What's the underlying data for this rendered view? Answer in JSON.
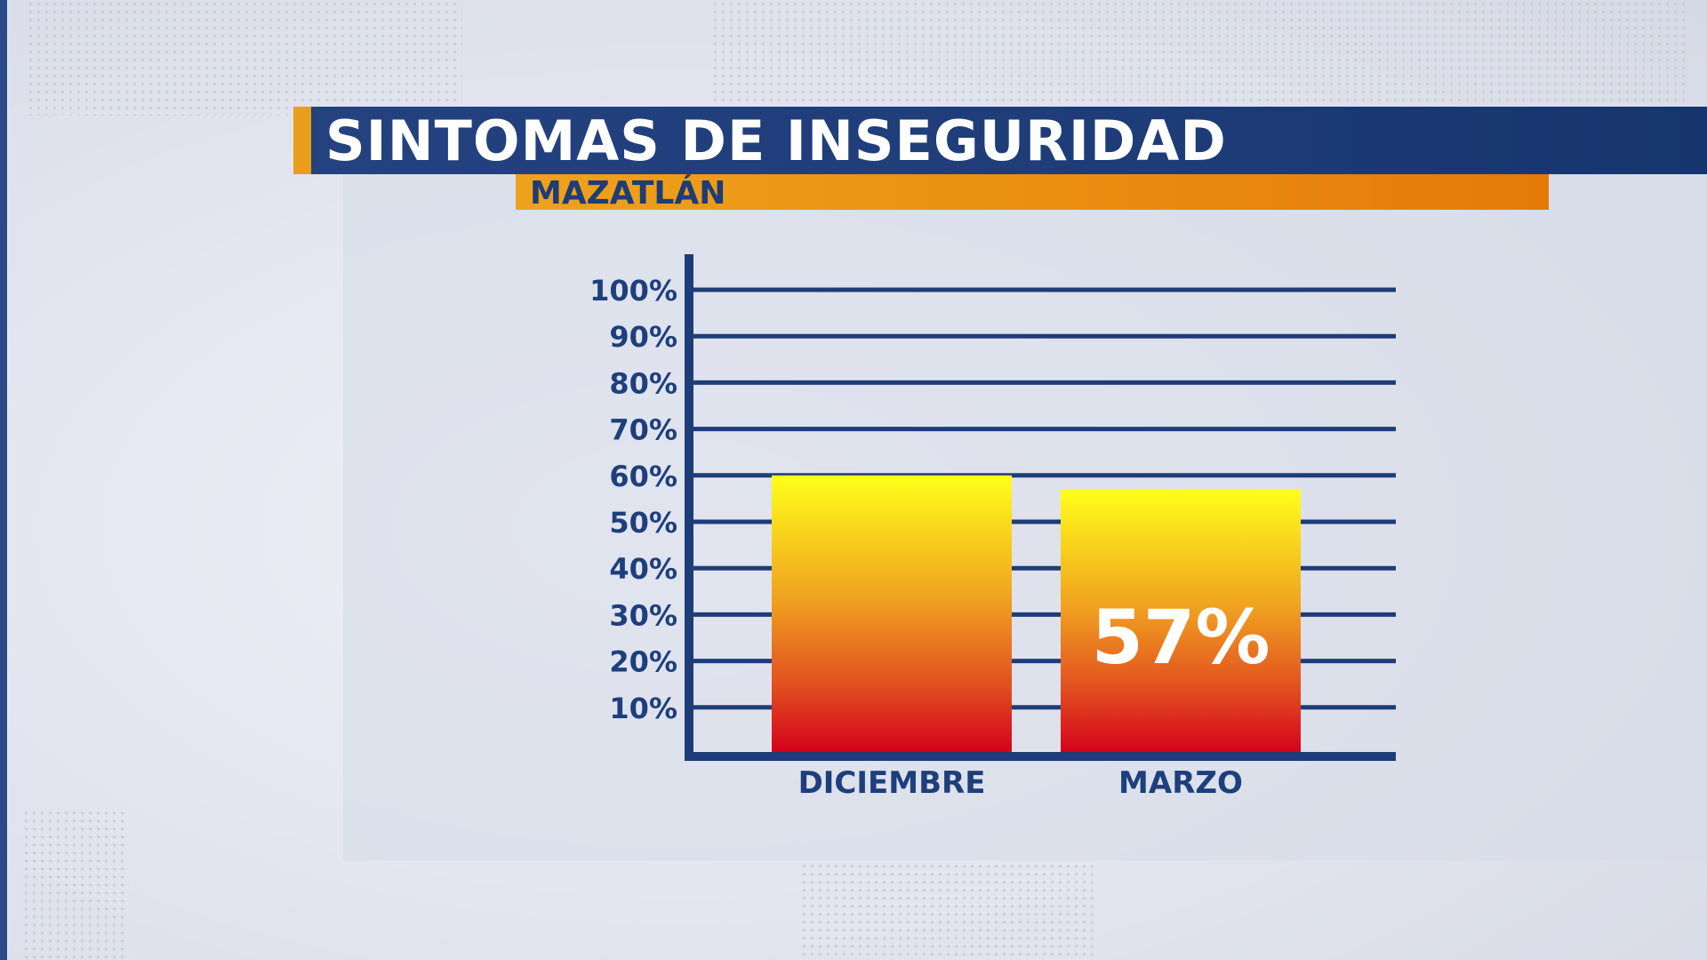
{
  "header": {
    "title": "SINTOMAS DE INSEGURIDAD",
    "subtitle": "MAZATLÁN"
  },
  "colors": {
    "navy": "#1e3c78",
    "orange": "#e99f1a",
    "bar_top": "#ffff1a",
    "bar_bottom": "#d4001c"
  },
  "chart_data": {
    "type": "bar",
    "title": "SINTOMAS DE INSEGURIDAD",
    "subtitle": "MAZATLÁN",
    "categories": [
      "DICIEMBRE",
      "MARZO"
    ],
    "values": [
      60,
      57
    ],
    "data_labels": [
      "",
      "57%"
    ],
    "ylim": [
      0,
      100
    ],
    "yticks": [
      10,
      20,
      30,
      40,
      50,
      60,
      70,
      80,
      90,
      100
    ],
    "ytick_labels": [
      "10%",
      "20%",
      "30%",
      "40%",
      "50%",
      "60%",
      "70%",
      "80%",
      "90%",
      "100%"
    ],
    "grid": true,
    "legend": "none"
  }
}
